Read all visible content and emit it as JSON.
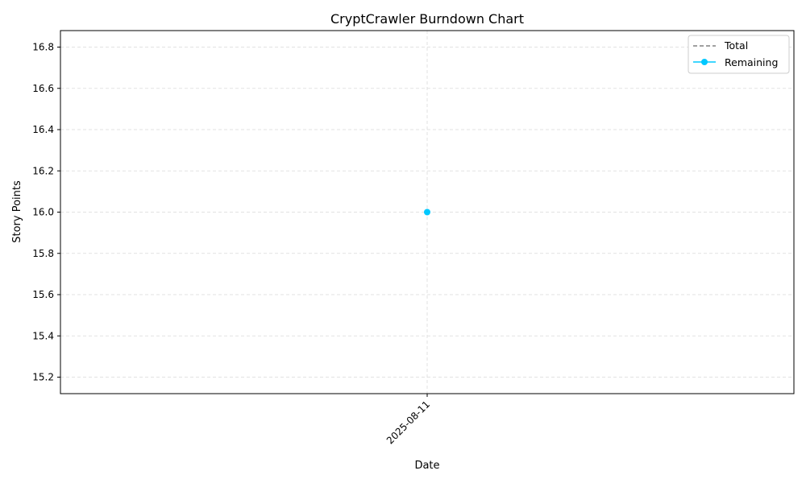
{
  "chart_data": {
    "type": "line",
    "title": "CryptCrawler Burndown Chart",
    "xlabel": "Date",
    "ylabel": "Story Points",
    "x": [
      "2025-08-11"
    ],
    "series": [
      {
        "name": "Total",
        "values": [
          16.0
        ],
        "color": "#808080",
        "style": "dashed"
      },
      {
        "name": "Remaining",
        "values": [
          16.0
        ],
        "color": "#00c8ff",
        "style": "solid-marker"
      }
    ],
    "ylim": [
      15.12,
      16.88
    ],
    "yticks": [
      "15.2",
      "15.4",
      "15.6",
      "15.8",
      "16.0",
      "16.2",
      "16.4",
      "16.6",
      "16.8"
    ],
    "xticks": [
      "2025-08-11"
    ],
    "grid": true,
    "legend_position": "top-right"
  }
}
